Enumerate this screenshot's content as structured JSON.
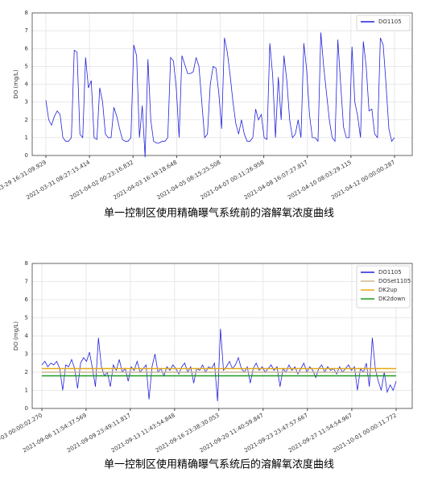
{
  "chart_data": [
    {
      "type": "line",
      "title": "单一控制区使用精确曝气系统前的溶解氧浓度曲线",
      "ylabel": "DO (mg/L)",
      "ylim": [
        0,
        8
      ],
      "yticks": [
        0,
        1,
        2,
        3,
        4,
        5,
        6,
        7,
        8
      ],
      "grid": true,
      "legend": "upper right",
      "xlim": [
        "2021-03-29 16:31:09.929",
        "2021-04-12 00:00:00.287"
      ],
      "xticks": [
        "2021-03-29 16:31:09.929",
        "2021-03-31 08:27:15.414",
        "2021-04-02 00:23:16.832",
        "2021-04-03 16:19:18.648",
        "2021-04-05 08:15:25.508",
        "2021-04-07 00:11:26.958",
        "2021-04-08 16:07:27.817",
        "2021-04-10 08:03:29.115",
        "2021-04-12 00:00:00.287"
      ],
      "series": [
        {
          "name": "DO1105",
          "color": "#2222dd",
          "values": [
            3.1,
            2.0,
            1.7,
            2.2,
            2.5,
            2.3,
            1.0,
            0.8,
            0.8,
            1.0,
            5.9,
            5.8,
            1.2,
            1.0,
            5.5,
            3.8,
            4.2,
            1.0,
            0.9,
            3.8,
            3.0,
            1.2,
            1.0,
            1.0,
            2.7,
            2.2,
            1.5,
            0.9,
            0.8,
            0.8,
            1.0,
            6.2,
            5.6,
            1.0,
            2.8,
            -0.1,
            5.4,
            2.0,
            0.8,
            0.7,
            0.7,
            0.8,
            0.8,
            1.0,
            5.5,
            5.3,
            3.8,
            1.0,
            5.6,
            5.1,
            4.6,
            4.6,
            4.7,
            5.5,
            5.0,
            3.0,
            1.0,
            1.2,
            4.0,
            5.0,
            4.9,
            3.5,
            1.5,
            6.6,
            5.8,
            4.5,
            3.0,
            1.8,
            1.2,
            2.0,
            1.2,
            0.8,
            0.8,
            1.0,
            2.6,
            2.0,
            2.3,
            1.0,
            0.9,
            6.3,
            4.5,
            1.0,
            4.4,
            2.0,
            5.6,
            4.2,
            2.0,
            1.0,
            1.2,
            2.0,
            1.0,
            6.3,
            4.8,
            2.3,
            1.0,
            1.0,
            0.8,
            6.9,
            5.0,
            3.5,
            2.0,
            1.0,
            0.8,
            6.5,
            4.0,
            1.6,
            1.0,
            1.0,
            6.1,
            3.0,
            2.2,
            1.0,
            6.4,
            5.0,
            2.5,
            2.6,
            1.2,
            1.0,
            6.6,
            6.2,
            4.0,
            1.5,
            0.8,
            1.0
          ]
        }
      ]
    },
    {
      "type": "line",
      "title": "单一控制区使用精确曝气系统后的溶解氧浓度曲线",
      "ylabel": "DO (mg/L)",
      "ylim": [
        0,
        8
      ],
      "yticks": [
        0,
        1,
        2,
        3,
        4,
        5,
        6,
        7,
        8
      ],
      "grid": true,
      "legend": "upper right",
      "xlim": [
        "2021-09-03 00:00:02.270",
        "2021-10-01 00:00:11.772"
      ],
      "xticks": [
        "2021-09-03 00:00:02.270",
        "2021-09-06 11:54:37.569",
        "2021-09-09 23:49:11.817",
        "2021-09-13 11:43:54.848",
        "2021-09-16 23:38:30.053",
        "2021-09-20 11:40:59.847",
        "2021-09-23 23:47:57.667",
        "2021-09-27 11:54:54.967",
        "2021-10-01 00:00:11.772"
      ],
      "series": [
        {
          "name": "DO1105",
          "color": "#2222dd",
          "values": [
            2.4,
            2.6,
            2.3,
            2.5,
            2.4,
            2.6,
            2.2,
            1.0,
            2.4,
            2.3,
            2.7,
            2.2,
            1.1,
            2.5,
            2.8,
            2.6,
            3.1,
            2.2,
            1.2,
            3.9,
            2.3,
            1.8,
            2.0,
            1.2,
            2.4,
            2.1,
            2.7,
            2.0,
            2.2,
            1.5,
            2.3,
            2.1,
            2.6,
            2.0,
            2.2,
            2.4,
            0.5,
            2.3,
            3.0,
            2.0,
            2.2,
            1.8,
            2.3,
            2.1,
            2.4,
            2.2,
            1.9,
            2.3,
            2.5,
            2.0,
            2.3,
            1.4,
            2.2,
            2.1,
            2.4,
            2.0,
            2.3,
            2.2,
            2.5,
            0.4,
            4.4,
            2.1,
            2.3,
            2.6,
            2.2,
            2.4,
            2.8,
            2.2,
            2.0,
            2.3,
            1.4,
            2.2,
            2.5,
            2.1,
            2.3,
            2.0,
            2.2,
            2.4,
            2.1,
            2.3,
            1.2,
            2.2,
            2.0,
            2.4,
            2.1,
            2.3,
            1.9,
            2.2,
            2.5,
            2.0,
            2.3,
            2.1,
            1.7,
            2.2,
            2.4,
            2.0,
            2.3,
            2.1,
            2.2,
            1.9,
            2.3,
            2.0,
            2.2,
            2.4,
            2.1,
            2.3,
            1.0,
            2.2,
            2.0,
            2.5,
            1.2,
            3.9,
            2.2,
            1.5,
            1.0,
            2.0,
            0.9,
            1.3,
            1.0,
            1.5
          ]
        },
        {
          "name": "DOSet1105",
          "color": "#cbb994",
          "values": [
            2,
            2
          ]
        },
        {
          "name": "DK2up",
          "color": "#e6a817",
          "values": [
            2.2,
            2.2
          ]
        },
        {
          "name": "DK2down",
          "color": "#1f9a1f",
          "values": [
            1.8,
            1.8
          ]
        }
      ]
    }
  ]
}
